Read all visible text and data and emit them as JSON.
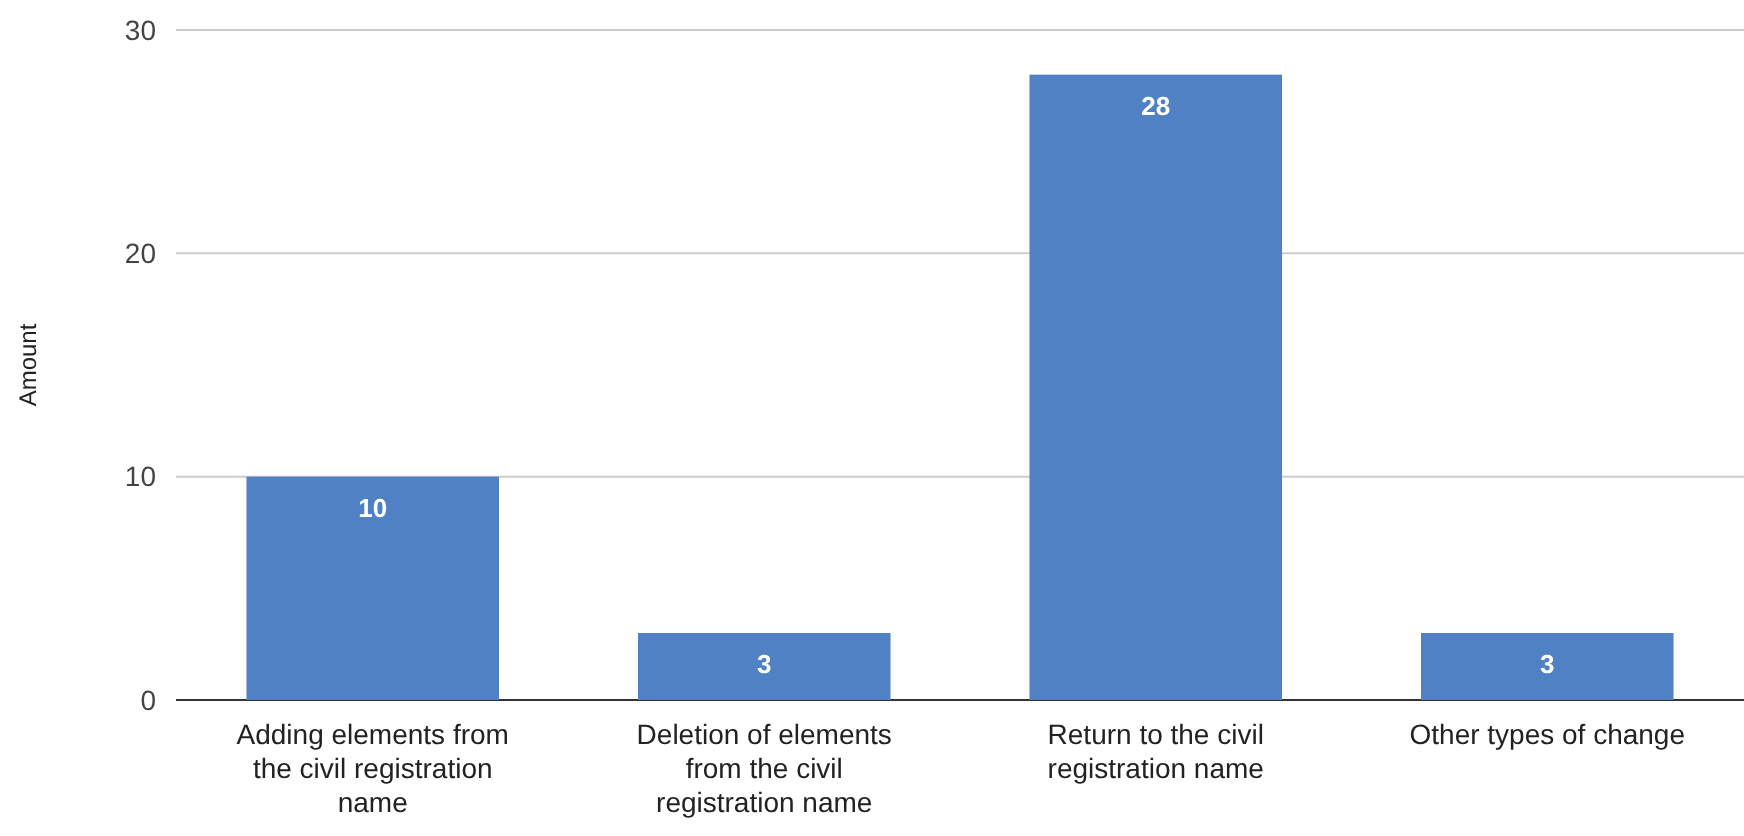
{
  "chart_data": {
    "type": "bar",
    "ylabel": "Amount",
    "categories": [
      "Adding elements from the civil registration name",
      "Deletion of elements from the civil registration name",
      "Return to the civil registration name",
      "Other types of change"
    ],
    "values": [
      10,
      3,
      28,
      3
    ],
    "color": "#4f81c4",
    "ylim": [
      0,
      30
    ],
    "yticks": [
      0,
      10,
      20,
      30
    ],
    "grid": "y",
    "data_labels": true
  }
}
